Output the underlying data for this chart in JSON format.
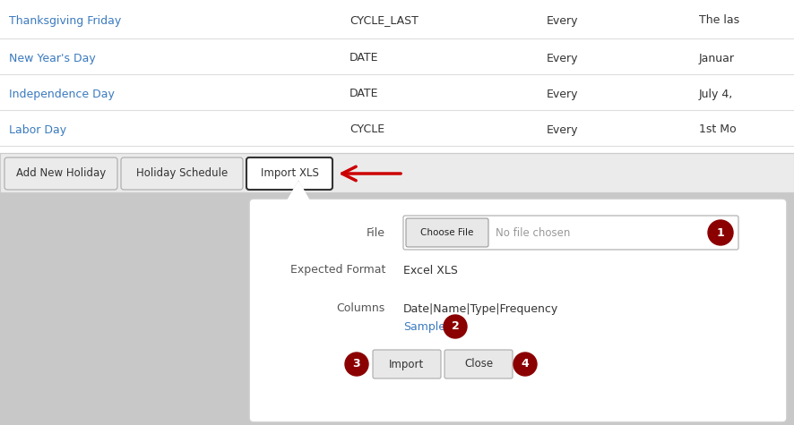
{
  "fig_w": 8.86,
  "fig_h": 4.75,
  "dpi": 100,
  "bg_color": "#c8c8c8",
  "table_bg": "#ffffff",
  "table_rows": [
    {
      "name": "Thanksgiving Friday",
      "type": "CYCLE_LAST",
      "freq": "Every",
      "desc": "The las"
    },
    {
      "name": "New Year's Day",
      "type": "DATE",
      "freq": "Every",
      "desc": "Januar"
    },
    {
      "name": "Independence Day",
      "type": "DATE",
      "freq": "Every",
      "desc": "July 4,"
    },
    {
      "name": "Labor Day",
      "type": "CYCLE",
      "freq": "Every",
      "desc": "1st Mo"
    }
  ],
  "row_link_color": "#3a7abf",
  "row_text_color": "#333333",
  "toolbar_bg": "#ebebeb",
  "toolbar_border": "#cccccc",
  "btn_labels": [
    "Add New Holiday",
    "Holiday Schedule",
    "Import XLS"
  ],
  "arrow_color": "#cc0000",
  "dialog_bg": "#ffffff",
  "dialog_border": "#cccccc",
  "circle_color": "#8b0000",
  "circle_text_color": "#ffffff",
  "sample_link_color": "#3a7abf",
  "choose_btn_bg": "#e8e8e8",
  "choose_btn_border": "#999999",
  "import_btn_bg": "#e8e8e8",
  "import_btn_border": "#aaaaaa",
  "file_field_bg": "#ffffff",
  "file_field_border": "#aaaaaa"
}
